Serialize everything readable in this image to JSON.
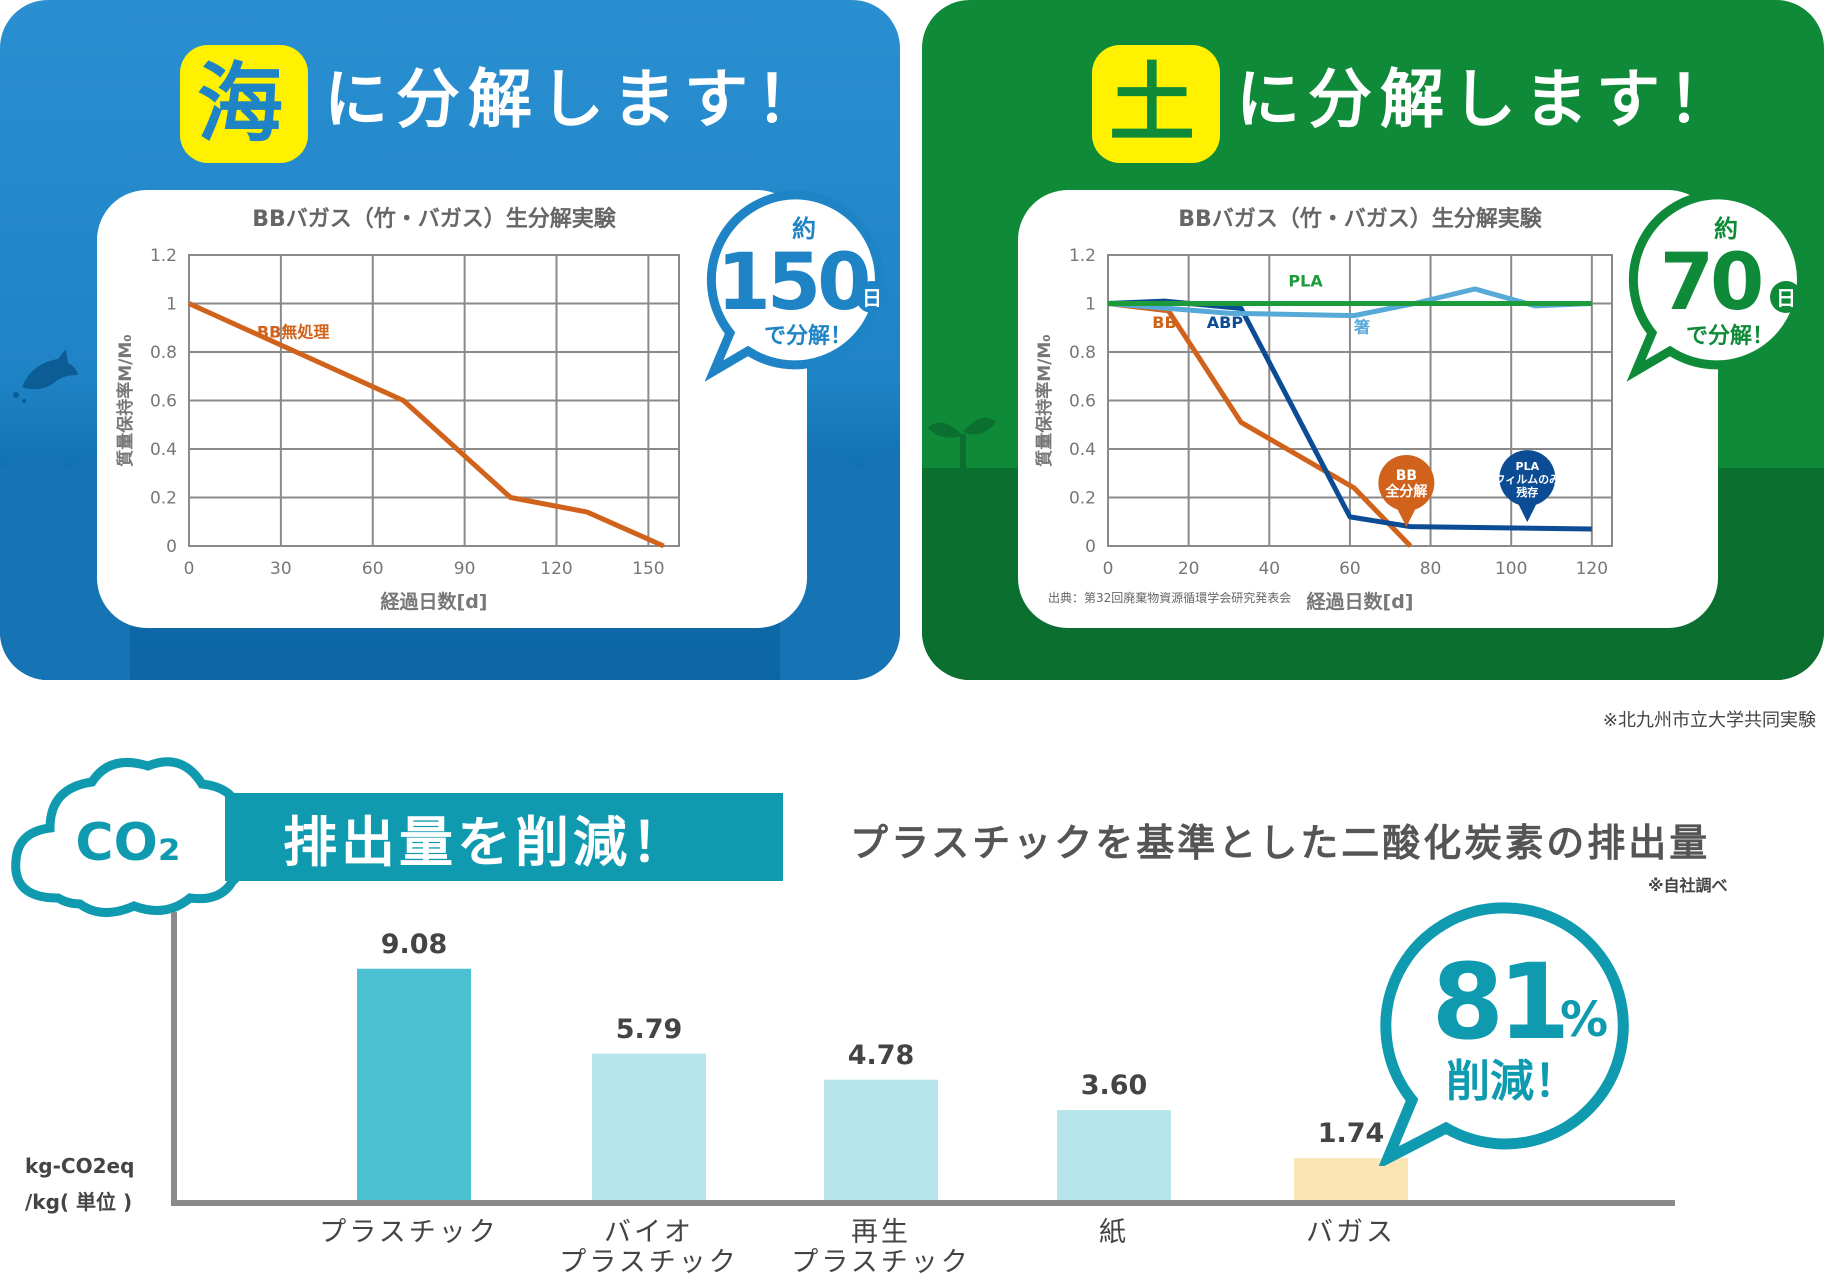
{
  "sea": {
    "kanji": "海",
    "suffix": "に分解します！",
    "badge": {
      "top": "約",
      "number": "150",
      "unit": "日",
      "bottom": "で分解！"
    }
  },
  "soil": {
    "kanji": "土",
    "suffix": "に分解します！",
    "badge": {
      "top": "約",
      "number": "70",
      "unit": "日",
      "bottom": "で分解！"
    },
    "source": "出典：第32回廃棄物資源循環学会研究発表会",
    "tag_bb": "BB\n全分解",
    "tag_pla": "PLA\nフィルムのみ\n残存"
  },
  "experiment_note": "※北九州市立大学共同実験",
  "co2": {
    "cloud_label": "CO₂",
    "banner": "排出量を削減！",
    "subtitle": "プラスチックを基準とした二酸化炭素の排出量",
    "self_note": "※自社調べ",
    "badge_number": "81",
    "badge_unit": "%",
    "badge_bottom": "削減！",
    "unit_line1": "kg-CO2eq",
    "unit_line2": "/kg( 単位 )"
  },
  "colors": {
    "sea_blue": "#1f84c6",
    "soil_green": "#0e8a38",
    "yellow": "#fff100",
    "orange": "#d0621b",
    "dark_blue": "#0b4c94",
    "light_blue": "#57a9d8",
    "green_line": "#1d9a3a",
    "teal": "#0f9aaf"
  },
  "chart_data": [
    {
      "type": "line",
      "title": "BBバガス（竹・バガス）生分解実験",
      "xlabel": "経過日数[d]",
      "ylabel": "質量保持率M/M₀",
      "xlim": [
        0,
        160
      ],
      "ylim": [
        0,
        1.2
      ],
      "xticks": [
        0,
        30,
        60,
        90,
        120,
        150
      ],
      "yticks": [
        "0",
        "0.2",
        "0.4",
        "0.6",
        "0.8",
        "1",
        "1.2"
      ],
      "grid": true,
      "series": [
        {
          "name": "BB無処理",
          "color": "#d0621b",
          "x": [
            0,
            35,
            70,
            105,
            130,
            155
          ],
          "y": [
            1.0,
            0.8,
            0.6,
            0.2,
            0.14,
            0.0
          ]
        }
      ]
    },
    {
      "type": "line",
      "title": "BBバガス（竹・バガス）生分解実験",
      "xlabel": "経過日数[d]",
      "ylabel": "質量保持率M/M₀",
      "xlim": [
        0,
        125
      ],
      "ylim": [
        0,
        1.2
      ],
      "xticks": [
        0,
        20,
        40,
        60,
        80,
        100,
        120
      ],
      "yticks": [
        "0",
        "0.2",
        "0.4",
        "0.6",
        "0.8",
        "1",
        "1.2"
      ],
      "grid": true,
      "series": [
        {
          "name": "BB",
          "color": "#d0621b",
          "x": [
            0,
            15,
            33,
            61,
            75
          ],
          "y": [
            1.0,
            0.97,
            0.51,
            0.24,
            0.0
          ]
        },
        {
          "name": "ABP",
          "color": "#0b4c94",
          "x": [
            0,
            14,
            33,
            60,
            75,
            120
          ],
          "y": [
            1.0,
            1.01,
            0.98,
            0.12,
            0.08,
            0.07
          ]
        },
        {
          "name": "箸",
          "color": "#57a9d8",
          "x": [
            0,
            30,
            61,
            76,
            91,
            106,
            120
          ],
          "y": [
            1.0,
            0.96,
            0.95,
            1.0,
            1.06,
            0.99,
            1.0
          ]
        },
        {
          "name": "PLA",
          "color": "#1d9a3a",
          "x": [
            0,
            120
          ],
          "y": [
            1.0,
            1.0
          ]
        }
      ]
    },
    {
      "type": "bar",
      "title": "プラスチックを基準とした二酸化炭素の排出量",
      "ylabel": "kg-CO2eq /kg( 単位 )",
      "categories": [
        "プラスチック",
        "バイオ\nプラスチック",
        "再生\nプラスチック",
        "紙",
        "バガス"
      ],
      "values": [
        9.08,
        5.79,
        4.78,
        3.6,
        1.74
      ],
      "value_labels": [
        "9.08",
        "5.79",
        "4.78",
        "3.60",
        "1.74"
      ],
      "colors": [
        "#4bc0d1",
        "#b5e5ea",
        "#b5e5ea",
        "#b5e5ea",
        "#fbe5b5"
      ],
      "ylim": [
        0,
        10
      ]
    }
  ]
}
